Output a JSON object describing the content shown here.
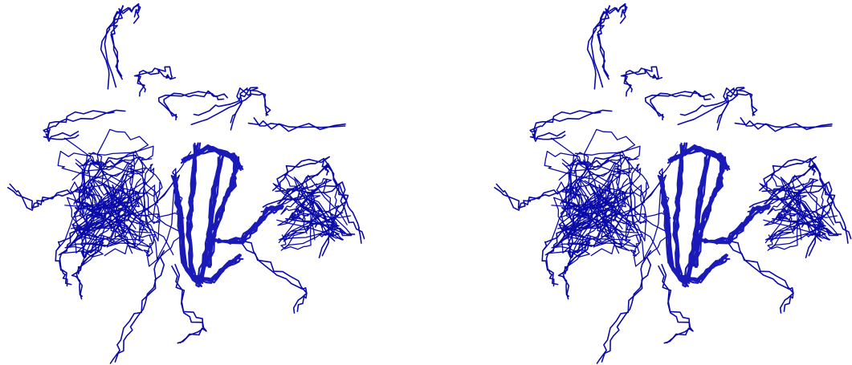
{
  "figure": {
    "type": "stereo-pair",
    "subject": "protein-backbone-ensemble",
    "views": [
      {
        "name": "left-eye"
      },
      {
        "name": "right-eye"
      }
    ],
    "colors": {
      "background": "#ffffff",
      "backbone": "#0a0aa8",
      "backbone_core": "#1a1ab8"
    }
  }
}
